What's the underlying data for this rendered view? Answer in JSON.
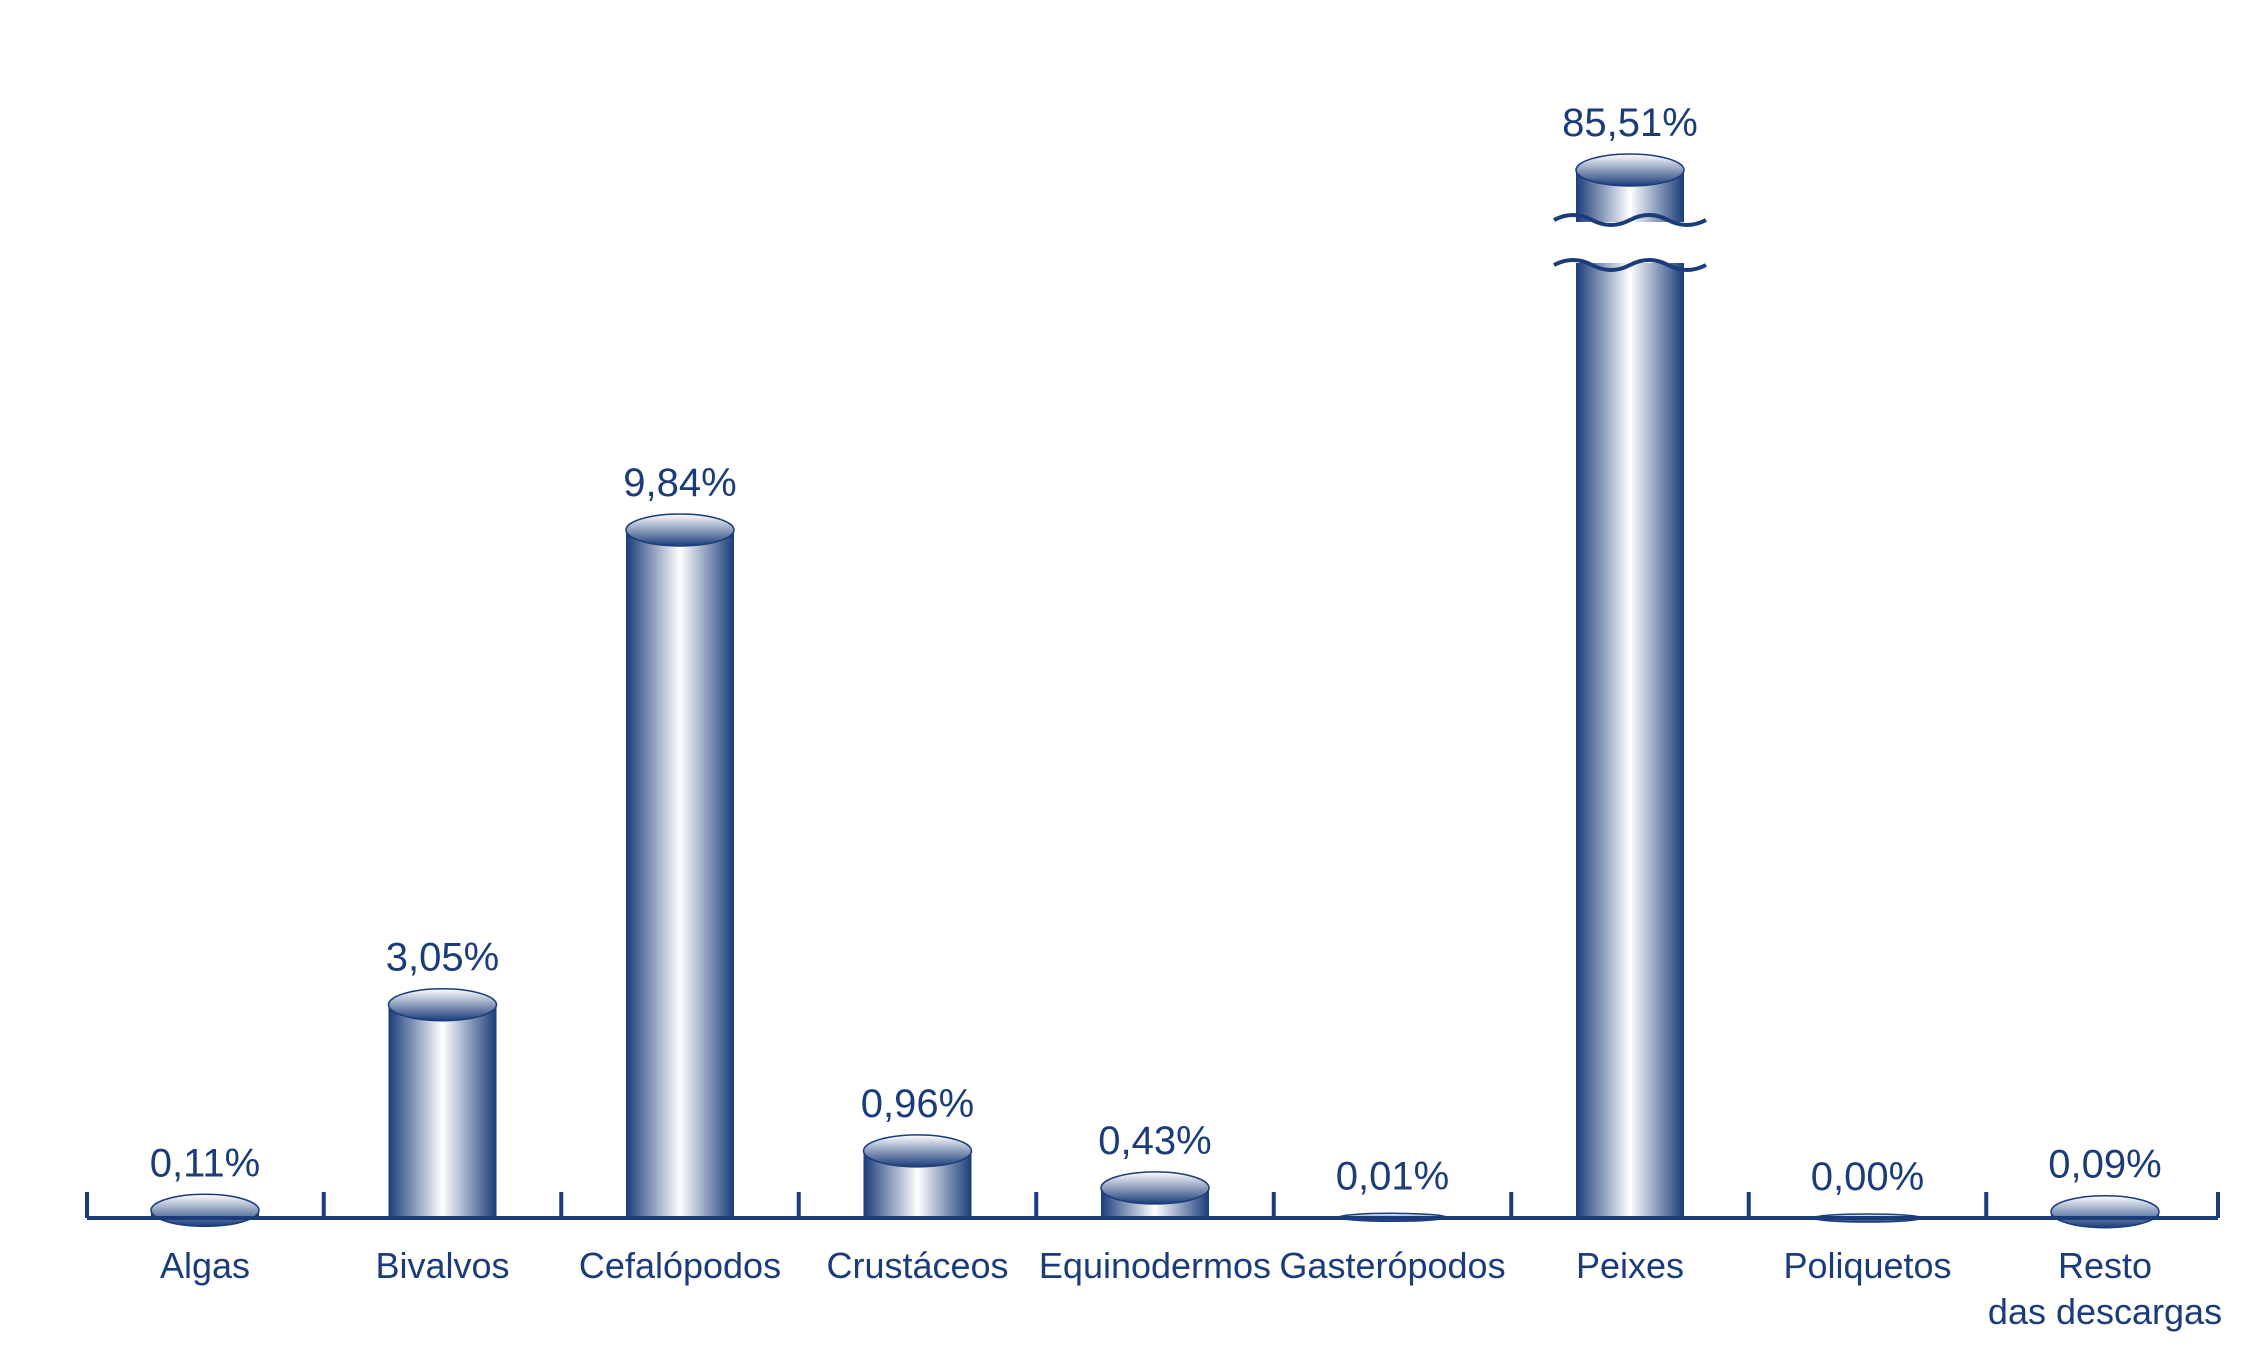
{
  "chart_data": {
    "type": "bar",
    "title": "",
    "xlabel": "",
    "ylabel": "",
    "ylim": [
      0,
      11
    ],
    "broken_axis_category": "Peixes",
    "categories": [
      "Algas",
      "Bivalvos",
      "Cefalópodos",
      "Crustáceos",
      "Equinodermos",
      "Gasterópodos",
      "Peixes",
      "Poliquetos",
      "Resto das descargas"
    ],
    "category_lines": [
      [
        "Algas"
      ],
      [
        "Bivalvos"
      ],
      [
        "Cefalópodos"
      ],
      [
        "Crustáceos"
      ],
      [
        "Equinodermos"
      ],
      [
        "Gasterópodos"
      ],
      [
        "Peixes"
      ],
      [
        "Poliquetos"
      ],
      [
        "Resto",
        "das descargas"
      ]
    ],
    "values": [
      0.11,
      3.05,
      9.84,
      0.96,
      0.43,
      0.01,
      85.51,
      0.0,
      0.09
    ],
    "value_labels": [
      "0,11%",
      "3,05%",
      "9,84%",
      "0,96%",
      "0,43%",
      "0,01%",
      "85,51%",
      "0,00%",
      "0,09%"
    ],
    "grid": false,
    "legend": "none"
  },
  "colors": {
    "bar_dark": "#1a3c7a",
    "bar_light": "#ffffff",
    "axis": "#1a3c7a",
    "text": "#1a3c7a"
  }
}
